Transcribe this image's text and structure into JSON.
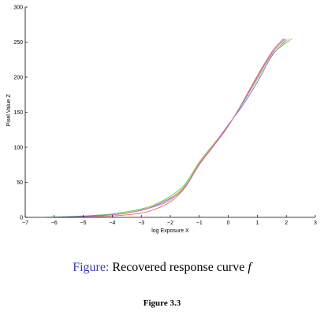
{
  "chart_data": {
    "type": "line",
    "xlabel": "log Exposure X",
    "ylabel": "Pixel Value Z",
    "xlim": [
      -7,
      3
    ],
    "ylim": [
      0,
      300
    ],
    "xticks": [
      -7,
      -6,
      -5,
      -4,
      -3,
      -2,
      -1,
      0,
      1,
      2,
      3
    ],
    "yticks": [
      0,
      50,
      100,
      150,
      200,
      250,
      300
    ],
    "grid": false,
    "series": [
      {
        "color": "#e06666",
        "x": [
          -6.0,
          -5.0,
          -4.0,
          -3.0,
          -2.5,
          -2.0,
          -1.5,
          -1.0,
          -0.5,
          0.0,
          0.5,
          1.0,
          1.5,
          1.9
        ],
        "y": [
          0,
          0.5,
          2,
          6,
          12,
          22,
          42,
          75,
          102,
          130,
          165,
          202,
          236,
          255
        ]
      },
      {
        "color": "#4fcf4f",
        "x": [
          -6.3,
          -5.0,
          -4.0,
          -3.0,
          -2.5,
          -2.0,
          -1.5,
          -1.0,
          -0.5,
          0.0,
          0.5,
          1.0,
          1.5,
          2.2
        ],
        "y": [
          0,
          2,
          5,
          12,
          19,
          30,
          47,
          79,
          105,
          131,
          164,
          198,
          232,
          255
        ]
      },
      {
        "color": "#6a6ad8",
        "x": [
          -6.0,
          -5.0,
          -4.0,
          -3.0,
          -2.5,
          -2.0,
          -1.5,
          -1.0,
          -0.5,
          0.0,
          0.5,
          1.0,
          1.5,
          2.0
        ],
        "y": [
          0,
          1.5,
          4,
          10,
          17,
          27,
          44,
          77,
          104,
          132,
          160,
          193,
          230,
          254
        ]
      },
      {
        "color": "#cfcf4f",
        "x": [
          -5.0,
          -4.0,
          -3.0,
          -2.0,
          -1.5,
          -1.0,
          -0.5,
          0.0,
          0.5,
          1.0,
          1.5,
          2.1
        ],
        "y": [
          0,
          4,
          11,
          28,
          45,
          78,
          104,
          131,
          163,
          197,
          232,
          255
        ]
      },
      {
        "color": "#cc66cc",
        "x": [
          -5.5,
          -4.5,
          -3.5,
          -2.5,
          -2.0,
          -1.5,
          -1.0,
          -0.5,
          0.0,
          0.5,
          1.0,
          1.5,
          1.95
        ],
        "y": [
          0,
          2,
          6,
          16,
          25,
          43,
          76,
          103,
          131,
          163,
          200,
          234,
          255
        ]
      }
    ]
  },
  "caption": {
    "prefix": "Figure:",
    "text": "Recovered response curve",
    "symbol": "f"
  },
  "figure_label": "Figure 3.3"
}
